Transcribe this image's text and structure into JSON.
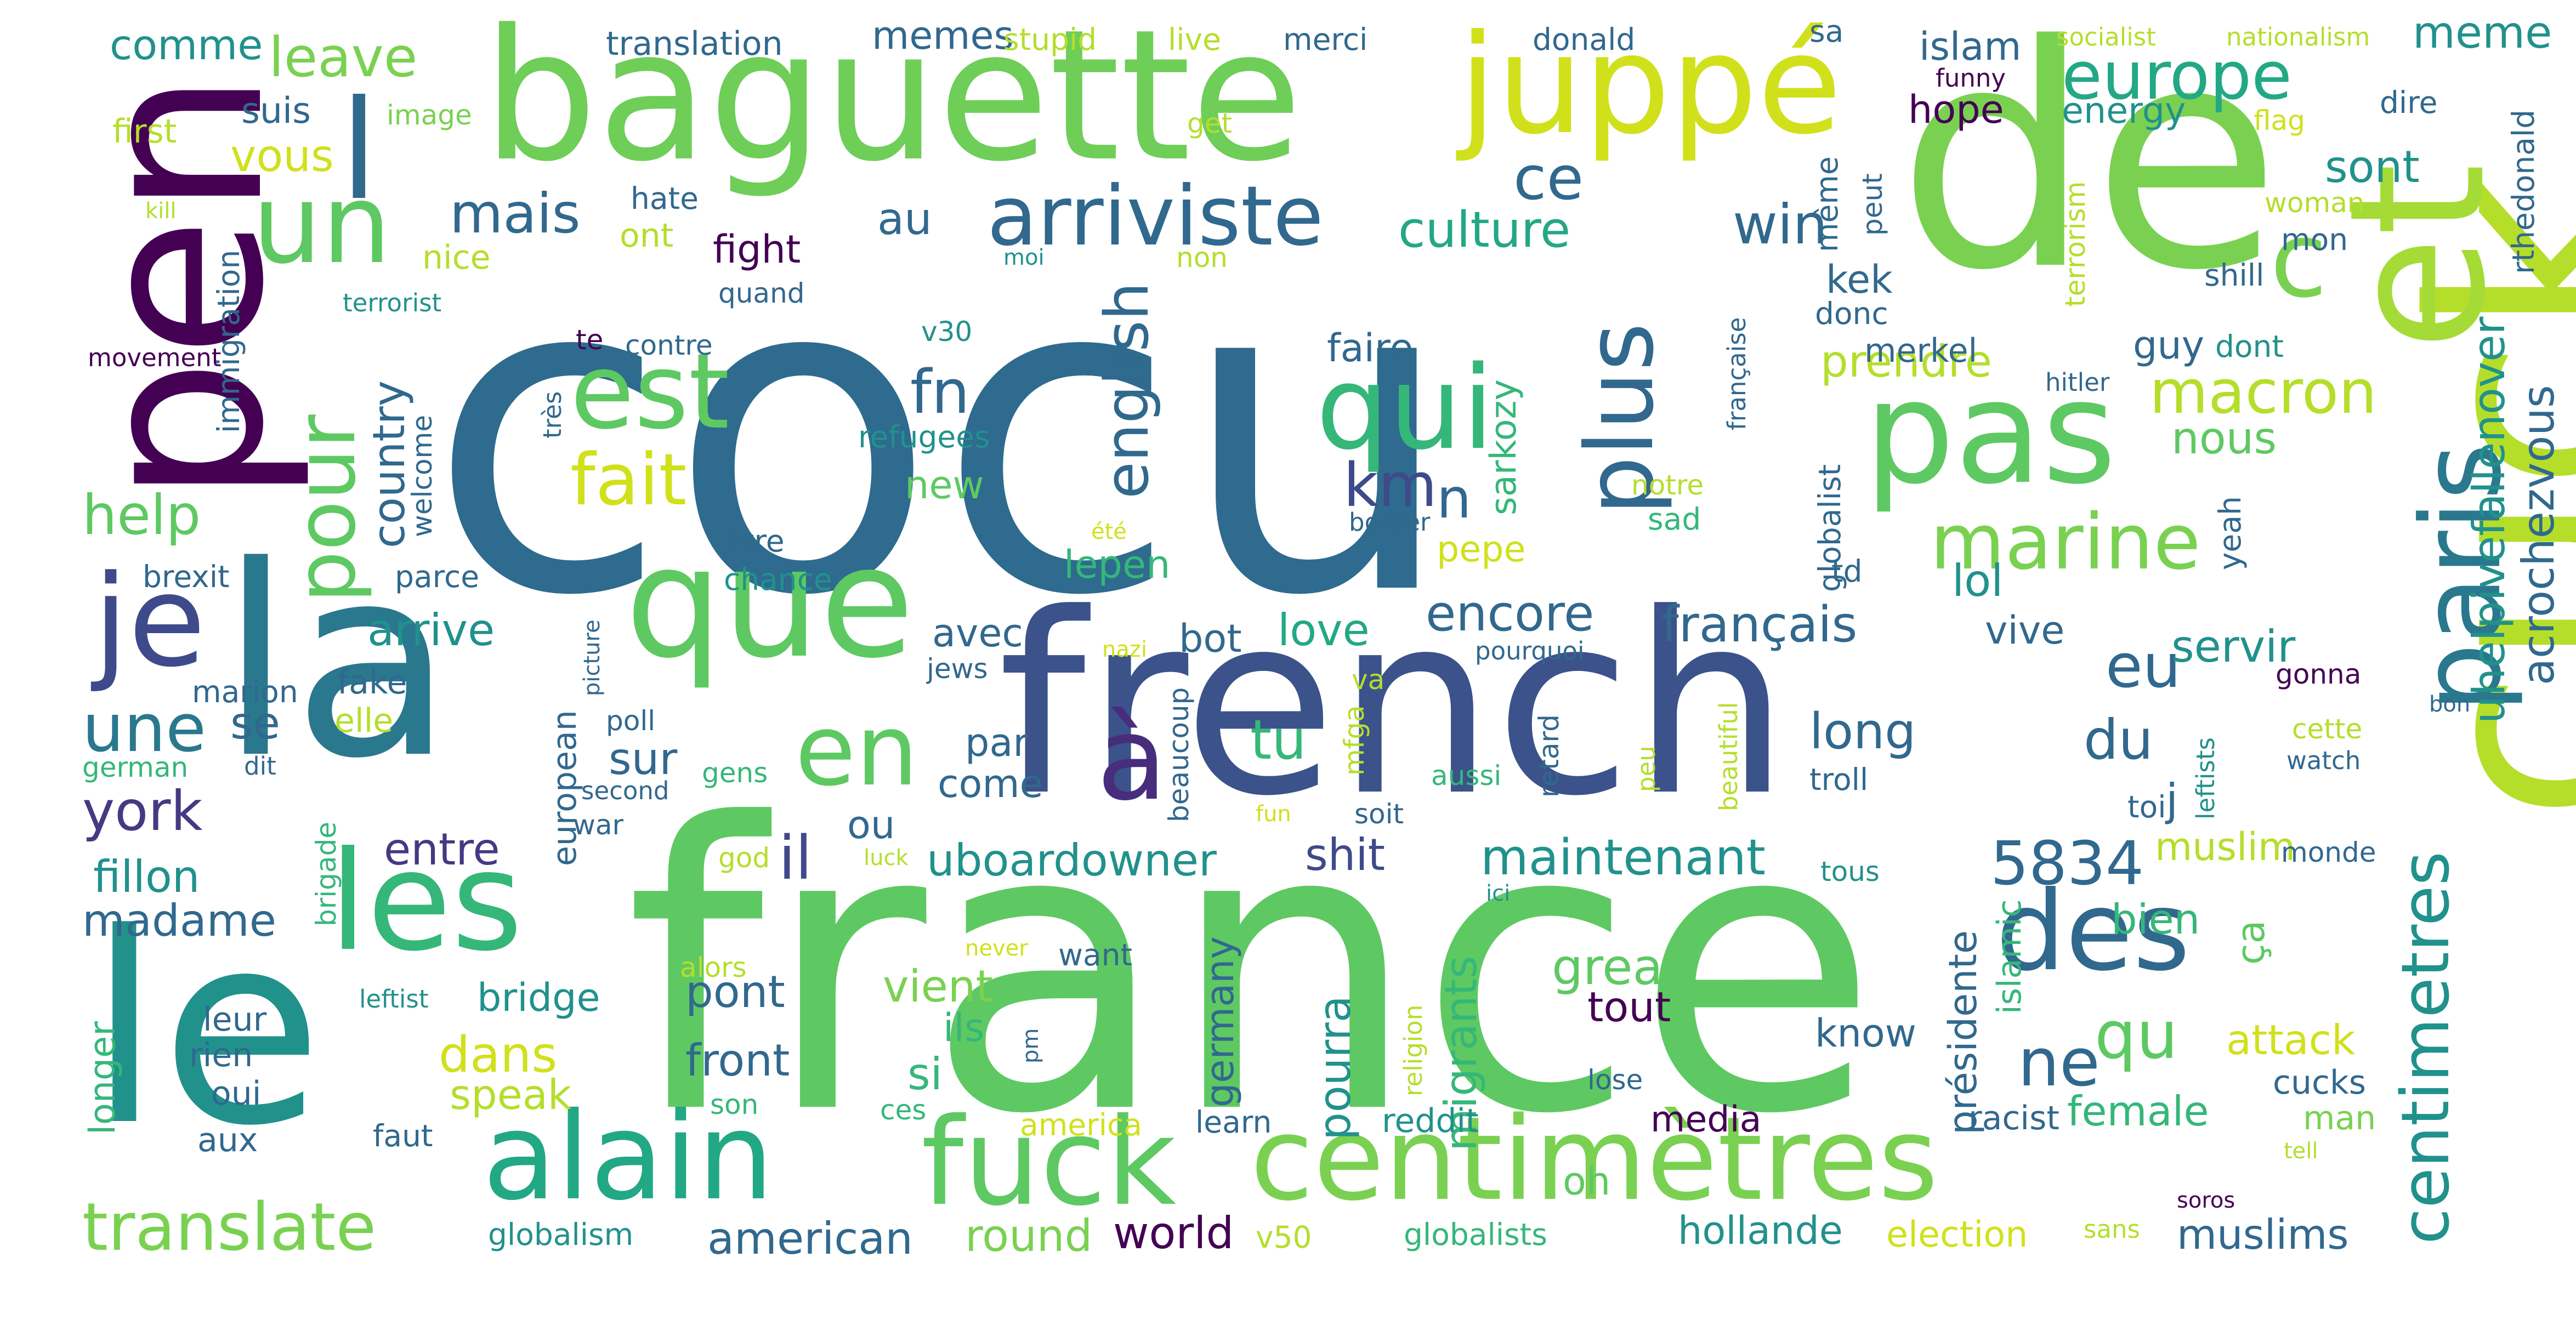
{
  "palette": {
    "background": "#ffffff",
    "colormap": "viridis"
  },
  "words": [
    {
      "text": "cocu",
      "color": "#2e6b8e"
    },
    {
      "text": "france",
      "color": "#5ec962"
    },
    {
      "text": "de",
      "color": "#7ad151"
    },
    {
      "text": "la",
      "color": "#2a788e"
    },
    {
      "text": "le",
      "color": "#21918c"
    },
    {
      "text": "cuck",
      "color": "#b5de2b"
    },
    {
      "text": "french",
      "color": "#3b528b"
    },
    {
      "text": "et",
      "color": "#a5db36"
    },
    {
      "text": "pen",
      "color": "#440154"
    },
    {
      "text": "baguette",
      "color": "#6ece58"
    },
    {
      "text": "les",
      "color": "#35b779"
    },
    {
      "text": "que",
      "color": "#5ec962"
    },
    {
      "text": "pas",
      "color": "#5ec962"
    },
    {
      "text": "je",
      "color": "#3e4a89"
    },
    {
      "text": "centimètres",
      "color": "#7ad151"
    },
    {
      "text": "alain",
      "color": "#22a884"
    },
    {
      "text": "fuck",
      "color": "#5ec962"
    },
    {
      "text": "juppé",
      "color": "#d0e11c"
    },
    {
      "text": "à",
      "color": "#472d7b"
    },
    {
      "text": "qui",
      "color": "#35b779"
    },
    {
      "text": "paris",
      "color": "#2a788e"
    },
    {
      "text": "des",
      "color": "#31688e"
    },
    {
      "text": "un",
      "color": "#5ec962"
    },
    {
      "text": "plus",
      "color": "#31688e"
    },
    {
      "text": "est",
      "color": "#5ec962"
    },
    {
      "text": "en",
      "color": "#5ec962"
    },
    {
      "text": "pour",
      "color": "#5ec962"
    },
    {
      "text": "arriviste",
      "color": "#31688e"
    },
    {
      "text": "c",
      "color": "#7ad151"
    },
    {
      "text": "fait",
      "color": "#d0e11c"
    },
    {
      "text": "marine",
      "color": "#7ad151"
    },
    {
      "text": "translate",
      "color": "#7ad151"
    },
    {
      "text": "une",
      "color": "#2a788e"
    },
    {
      "text": "centimetres",
      "color": "#21918c"
    },
    {
      "text": "l",
      "color": "#31688e"
    },
    {
      "text": "europe",
      "color": "#22a884"
    },
    {
      "text": "macron",
      "color": "#b5de2b"
    },
    {
      "text": "ne",
      "color": "#31688e"
    },
    {
      "text": "qu",
      "color": "#5ec962"
    },
    {
      "text": "english",
      "color": "#31688e"
    },
    {
      "text": "ce",
      "color": "#31688e"
    },
    {
      "text": "mais",
      "color": "#31688e"
    },
    {
      "text": "fn",
      "color": "#31688e"
    },
    {
      "text": "km",
      "color": "#3e4a89"
    },
    {
      "text": "5834",
      "color": "#31688e"
    },
    {
      "text": "york",
      "color": "#443983"
    },
    {
      "text": "eu",
      "color": "#31688e"
    },
    {
      "text": "du",
      "color": "#31688e"
    },
    {
      "text": "français",
      "color": "#31688e"
    },
    {
      "text": "encore",
      "color": "#31688e"
    },
    {
      "text": "win",
      "color": "#31688e"
    },
    {
      "text": "n",
      "color": "#31688e"
    },
    {
      "text": "il",
      "color": "#3e4a89"
    },
    {
      "text": "leave",
      "color": "#7ad151"
    },
    {
      "text": "meme",
      "color": "#21918c"
    },
    {
      "text": "uhelpivefallenover",
      "color": "#21918c"
    },
    {
      "text": "acrochezvous",
      "color": "#31688e"
    },
    {
      "text": "help",
      "color": "#5ec962"
    },
    {
      "text": "country",
      "color": "#31688e"
    },
    {
      "text": "culture",
      "color": "#22a884"
    },
    {
      "text": "sont",
      "color": "#21918c"
    },
    {
      "text": "great",
      "color": "#5ec962"
    },
    {
      "text": "maintenant",
      "color": "#21918c"
    },
    {
      "text": "uboardowner",
      "color": "#21918c"
    },
    {
      "text": "fillon",
      "color": "#21918c"
    },
    {
      "text": "madame",
      "color": "#31688e"
    },
    {
      "text": "entre",
      "color": "#443983"
    },
    {
      "text": "shit",
      "color": "#3e4a89"
    },
    {
      "text": "dans",
      "color": "#d0e11c"
    },
    {
      "text": "prendre",
      "color": "#b5de2b"
    },
    {
      "text": "nous",
      "color": "#5ec962"
    },
    {
      "text": "faire",
      "color": "#31688e"
    },
    {
      "text": "avec",
      "color": "#31688e"
    },
    {
      "text": "love",
      "color": "#22a884"
    },
    {
      "text": "tu",
      "color": "#35b779"
    },
    {
      "text": "long",
      "color": "#31688e"
    },
    {
      "text": "lol",
      "color": "#21918c"
    },
    {
      "text": "servir",
      "color": "#21918c"
    },
    {
      "text": "arrive",
      "color": "#21918c"
    },
    {
      "text": "bot",
      "color": "#31688e"
    },
    {
      "text": "vive",
      "color": "#31688e"
    },
    {
      "text": "islam",
      "color": "#31688e"
    },
    {
      "text": "hope",
      "color": "#440154"
    },
    {
      "text": "energy",
      "color": "#21918c"
    },
    {
      "text": "suis",
      "color": "#31688e"
    },
    {
      "text": "vous",
      "color": "#d0e11c"
    },
    {
      "text": "comme",
      "color": "#21918c"
    },
    {
      "text": "memes",
      "color": "#31688e"
    },
    {
      "text": "au",
      "color": "#31688e"
    },
    {
      "text": "fight",
      "color": "#440154"
    },
    {
      "text": "new",
      "color": "#5ec962"
    },
    {
      "text": "lepen",
      "color": "#35b779"
    },
    {
      "text": "sur",
      "color": "#31688e"
    },
    {
      "text": "par",
      "color": "#31688e"
    },
    {
      "text": "come",
      "color": "#31688e"
    },
    {
      "text": "ou",
      "color": "#31688e"
    },
    {
      "text": "se",
      "color": "#31688e"
    },
    {
      "text": "pont",
      "color": "#31688e"
    },
    {
      "text": "bridge",
      "color": "#21918c"
    },
    {
      "text": "vient",
      "color": "#7ad151"
    },
    {
      "text": "ils",
      "color": "#35b779"
    },
    {
      "text": "si",
      "color": "#35b779"
    },
    {
      "text": "front",
      "color": "#31688e"
    },
    {
      "text": "speak",
      "color": "#b5de2b"
    },
    {
      "text": "round",
      "color": "#7ad151"
    },
    {
      "text": "american",
      "color": "#31688e"
    },
    {
      "text": "world",
      "color": "#440154"
    },
    {
      "text": "pourra",
      "color": "#21918c"
    },
    {
      "text": "germany",
      "color": "#31688e"
    },
    {
      "text": "migrants",
      "color": "#35b779"
    },
    {
      "text": "tout",
      "color": "#440154"
    },
    {
      "text": "know",
      "color": "#31688e"
    },
    {
      "text": "attack",
      "color": "#d0e11c"
    },
    {
      "text": "muslim",
      "color": "#b5de2b"
    },
    {
      "text": "muslims",
      "color": "#31688e"
    },
    {
      "text": "female",
      "color": "#35b779"
    },
    {
      "text": "bien",
      "color": "#35b779"
    },
    {
      "text": "ça",
      "color": "#5ec962"
    },
    {
      "text": "j",
      "color": "#31688e"
    },
    {
      "text": "guy",
      "color": "#31688e"
    },
    {
      "text": "kek",
      "color": "#31688e"
    },
    {
      "text": "présidente",
      "color": "#31688e"
    },
    {
      "text": "islamic",
      "color": "#35b779"
    },
    {
      "text": "cucks",
      "color": "#31688e"
    },
    {
      "text": "man",
      "color": "#7ad151"
    },
    {
      "text": "media",
      "color": "#440154"
    },
    {
      "text": "racist",
      "color": "#31688e"
    },
    {
      "text": "oh",
      "color": "#5ec962"
    },
    {
      "text": "european",
      "color": "#31688e"
    },
    {
      "text": "sarkozy",
      "color": "#35b779"
    },
    {
      "text": "pepe",
      "color": "#d0e11c"
    },
    {
      "text": "merkel",
      "color": "#31688e"
    },
    {
      "text": "dont",
      "color": "#21918c"
    },
    {
      "text": "yeah",
      "color": "#31688e"
    },
    {
      "text": "globalist",
      "color": "#31688e"
    },
    {
      "text": "même",
      "color": "#31688e"
    },
    {
      "text": "hollande",
      "color": "#21918c"
    },
    {
      "text": "election",
      "color": "#d0e11c"
    },
    {
      "text": "globalism",
      "color": "#21918c"
    },
    {
      "text": "globalists",
      "color": "#35b779"
    },
    {
      "text": "reddit",
      "color": "#21918c"
    },
    {
      "text": "learn",
      "color": "#31688e"
    },
    {
      "text": "america",
      "color": "#d0e11c"
    },
    {
      "text": "faut",
      "color": "#31688e"
    },
    {
      "text": "aux",
      "color": "#31688e"
    },
    {
      "text": "oui",
      "color": "#31688e"
    },
    {
      "text": "rien",
      "color": "#31688e"
    },
    {
      "text": "leur",
      "color": "#31688e"
    },
    {
      "text": "longer",
      "color": "#35b779"
    },
    {
      "text": "elle",
      "color": "#b5de2b"
    },
    {
      "text": "fake",
      "color": "#31688e"
    },
    {
      "text": "marion",
      "color": "#31688e"
    },
    {
      "text": "german",
      "color": "#35b779"
    },
    {
      "text": "brexit",
      "color": "#31688e"
    },
    {
      "text": "parce",
      "color": "#31688e"
    },
    {
      "text": "nice",
      "color": "#b5de2b"
    },
    {
      "text": "ont",
      "color": "#b5de2b"
    },
    {
      "text": "hate",
      "color": "#31688e"
    },
    {
      "text": "first",
      "color": "#b5de2b"
    },
    {
      "text": "image",
      "color": "#7ad151"
    },
    {
      "text": "translation",
      "color": "#31688e"
    },
    {
      "text": "stupid",
      "color": "#b5de2b"
    },
    {
      "text": "live",
      "color": "#b5de2b"
    },
    {
      "text": "merci",
      "color": "#31688e"
    },
    {
      "text": "donald",
      "color": "#31688e"
    },
    {
      "text": "sa",
      "color": "#31688e"
    },
    {
      "text": "socialist",
      "color": "#b5de2b"
    },
    {
      "text": "nationalism",
      "color": "#b5de2b"
    },
    {
      "text": "funny",
      "color": "#440154"
    },
    {
      "text": "flag",
      "color": "#d0e11c"
    },
    {
      "text": "dire",
      "color": "#31688e"
    },
    {
      "text": "rthedonald",
      "color": "#31688e"
    },
    {
      "text": "woman",
      "color": "#b5de2b"
    },
    {
      "text": "mon",
      "color": "#31688e"
    },
    {
      "text": "shill",
      "color": "#31688e"
    },
    {
      "text": "terrorism",
      "color": "#b5de2b"
    },
    {
      "text": "peut",
      "color": "#31688e"
    },
    {
      "text": "donc",
      "color": "#31688e"
    },
    {
      "text": "hitler",
      "color": "#31688e"
    },
    {
      "text": "française",
      "color": "#31688e"
    },
    {
      "text": "notre",
      "color": "#b5de2b"
    },
    {
      "text": "sad",
      "color": "#35b779"
    },
    {
      "text": "td",
      "color": "#31688e"
    },
    {
      "text": "get",
      "color": "#b5de2b"
    },
    {
      "text": "non",
      "color": "#b5de2b"
    },
    {
      "text": "moi",
      "color": "#21918c"
    },
    {
      "text": "quand",
      "color": "#31688e"
    },
    {
      "text": "v30",
      "color": "#21918c"
    },
    {
      "text": "refugees",
      "color": "#21918c"
    },
    {
      "text": "contre",
      "color": "#31688e"
    },
    {
      "text": "te",
      "color": "#440154"
    },
    {
      "text": "terrorist",
      "color": "#21918c"
    },
    {
      "text": "kill",
      "color": "#b5de2b"
    },
    {
      "text": "movement",
      "color": "#440154"
    },
    {
      "text": "immigration",
      "color": "#31688e"
    },
    {
      "text": "welcome",
      "color": "#31688e"
    },
    {
      "text": "très",
      "color": "#31688e"
    },
    {
      "text": "border",
      "color": "#31688e"
    },
    {
      "text": "être",
      "color": "#31688e"
    },
    {
      "text": "chance",
      "color": "#21918c"
    },
    {
      "text": "été",
      "color": "#d0e11c"
    },
    {
      "text": "nazi",
      "color": "#d0e11c"
    },
    {
      "text": "pourquoi",
      "color": "#31688e"
    },
    {
      "text": "picture",
      "color": "#31688e"
    },
    {
      "text": "jews",
      "color": "#31688e"
    },
    {
      "text": "va",
      "color": "#b5de2b"
    },
    {
      "text": "mfga",
      "color": "#b5de2b"
    },
    {
      "text": "poll",
      "color": "#31688e"
    },
    {
      "text": "dit",
      "color": "#31688e"
    },
    {
      "text": "second",
      "color": "#31688e"
    },
    {
      "text": "gens",
      "color": "#35b779"
    },
    {
      "text": "war",
      "color": "#31688e"
    },
    {
      "text": "beaucoup",
      "color": "#31688e"
    },
    {
      "text": "retard",
      "color": "#31688e"
    },
    {
      "text": "peu",
      "color": "#b5de2b"
    },
    {
      "text": "aussi",
      "color": "#35b779"
    },
    {
      "text": "beautiful",
      "color": "#b5de2b"
    },
    {
      "text": "leftists",
      "color": "#21918c"
    },
    {
      "text": "gonna",
      "color": "#440154"
    },
    {
      "text": "cette",
      "color": "#b5de2b"
    },
    {
      "text": "watch",
      "color": "#31688e"
    },
    {
      "text": "bon",
      "color": "#31688e"
    },
    {
      "text": "troll",
      "color": "#31688e"
    },
    {
      "text": "toi",
      "color": "#31688e"
    },
    {
      "text": "monde",
      "color": "#31688e"
    },
    {
      "text": "tous",
      "color": "#21918c"
    },
    {
      "text": "pm",
      "color": "#31688e"
    },
    {
      "text": "soit",
      "color": "#31688e"
    },
    {
      "text": "fun",
      "color": "#d0e11c"
    },
    {
      "text": "luck",
      "color": "#b5de2b"
    },
    {
      "text": "god",
      "color": "#b5de2b"
    },
    {
      "text": "brigade",
      "color": "#35b779"
    },
    {
      "text": "leftist",
      "color": "#21918c"
    },
    {
      "text": "ici",
      "color": "#21918c"
    },
    {
      "text": "alors",
      "color": "#b5de2b"
    },
    {
      "text": "never",
      "color": "#d0e11c"
    },
    {
      "text": "want",
      "color": "#31688e"
    },
    {
      "text": "religion",
      "color": "#b5de2b"
    },
    {
      "text": "lose",
      "color": "#31688e"
    },
    {
      "text": "son",
      "color": "#35b779"
    },
    {
      "text": "ces",
      "color": "#35b779"
    },
    {
      "text": "v50",
      "color": "#b5de2b"
    },
    {
      "text": "sans",
      "color": "#b5de2b"
    },
    {
      "text": "soros",
      "color": "#440154"
    },
    {
      "text": "tell",
      "color": "#b5de2b"
    }
  ]
}
